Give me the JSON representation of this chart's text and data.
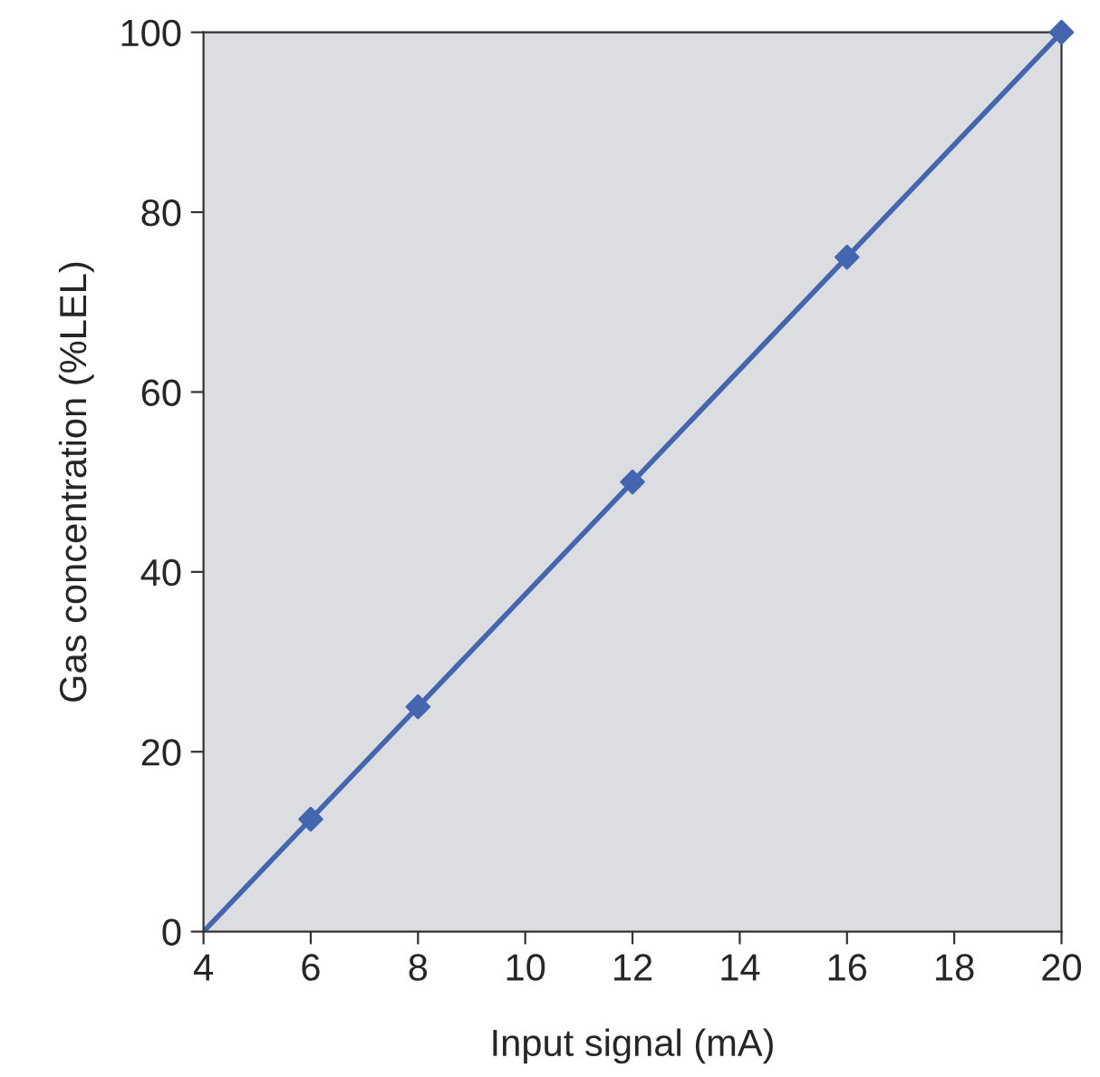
{
  "chart_data": {
    "type": "line",
    "xlabel": "Input signal (mA)",
    "ylabel": "Gas concentration (%LEL)",
    "series": [
      {
        "color": "#4466b0",
        "x": [
          4,
          20
        ],
        "values": [
          0,
          100
        ],
        "marker": "none"
      },
      {
        "type": "scatter",
        "color": "#4466b0",
        "x": [
          6,
          8,
          12,
          16,
          20
        ],
        "values": [
          12.5,
          25,
          50,
          75,
          100
        ],
        "marker": "diamond"
      }
    ],
    "xlim": [
      4,
      20
    ],
    "xticks": [
      4,
      6,
      8,
      10,
      12,
      14,
      16,
      18,
      20
    ],
    "ylim": [
      0,
      100
    ],
    "yticks": [
      0,
      20,
      40,
      60,
      80,
      100
    ],
    "grid": false,
    "legend": false
  }
}
